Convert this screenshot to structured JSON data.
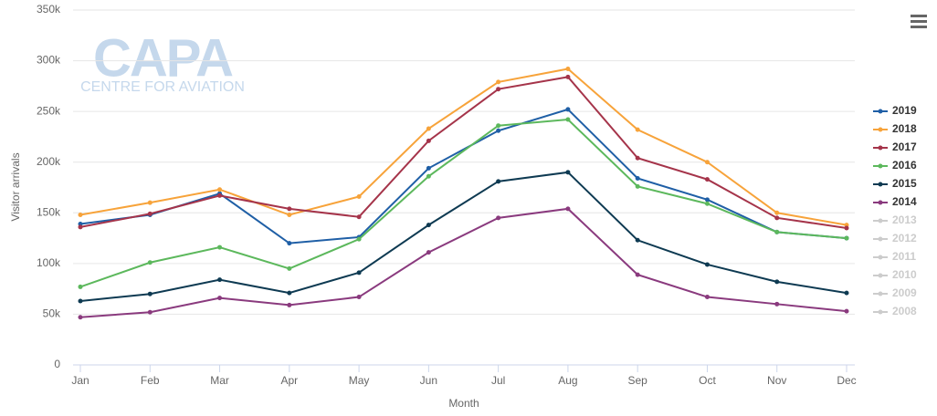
{
  "chart_data": {
    "type": "line",
    "watermark": {
      "title": "CAPA",
      "subtitle": "CENTRE FOR AVIATION"
    },
    "x_label": "Month",
    "y_label": "Visitor arrivals",
    "categories": [
      "Jan",
      "Feb",
      "Mar",
      "Apr",
      "May",
      "Jun",
      "Jul",
      "Aug",
      "Sep",
      "Oct",
      "Nov",
      "Dec"
    ],
    "ylim": [
      0,
      350000
    ],
    "yticks": [
      0,
      {
        "value": 50000,
        "label": "50k"
      },
      {
        "value": 100000,
        "label": "100k"
      },
      {
        "value": 150000,
        "label": "150k"
      },
      {
        "value": 200000,
        "label": "200k"
      },
      {
        "value": 250000,
        "label": "250k"
      },
      {
        "value": 300000,
        "label": "300k"
      },
      {
        "value": 350000,
        "label": "350k"
      }
    ],
    "grid": true,
    "legend": "right",
    "series": [
      {
        "name": "2019",
        "color": "#1f5fa6",
        "visible": true,
        "values": [
          139000,
          148000,
          169000,
          120000,
          126000,
          194000,
          231000,
          252000,
          184000,
          163000,
          131000,
          125000
        ]
      },
      {
        "name": "2018",
        "color": "#f7a33a",
        "visible": true,
        "values": [
          148000,
          160000,
          173000,
          148000,
          166000,
          233000,
          279000,
          292000,
          232000,
          200000,
          150000,
          138000
        ]
      },
      {
        "name": "2017",
        "color": "#a5344a",
        "visible": true,
        "values": [
          136000,
          149000,
          167000,
          154000,
          146000,
          221000,
          272000,
          284000,
          204000,
          183000,
          145000,
          135000
        ]
      },
      {
        "name": "2016",
        "color": "#5cb85c",
        "visible": true,
        "values": [
          77000,
          101000,
          116000,
          95000,
          124000,
          186000,
          236000,
          242000,
          176000,
          159000,
          131000,
          125000
        ]
      },
      {
        "name": "2015",
        "color": "#0e3a52",
        "visible": true,
        "values": [
          63000,
          70000,
          84000,
          71000,
          91000,
          138000,
          181000,
          190000,
          123000,
          99000,
          82000,
          71000
        ]
      },
      {
        "name": "2014",
        "color": "#8a3a7e",
        "visible": true,
        "values": [
          47000,
          52000,
          66000,
          59000,
          67000,
          111000,
          145000,
          154000,
          89000,
          67000,
          60000,
          53000
        ]
      },
      {
        "name": "2013",
        "color": "#cccccc",
        "visible": false,
        "values": [
          null,
          null,
          null,
          null,
          null,
          null,
          null,
          null,
          null,
          null,
          null,
          null
        ]
      },
      {
        "name": "2012",
        "color": "#cccccc",
        "visible": false,
        "values": [
          null,
          null,
          null,
          null,
          null,
          null,
          null,
          null,
          null,
          null,
          null,
          null
        ]
      },
      {
        "name": "2011",
        "color": "#cccccc",
        "visible": false,
        "values": [
          null,
          null,
          null,
          null,
          null,
          null,
          null,
          null,
          null,
          null,
          null,
          null
        ]
      },
      {
        "name": "2010",
        "color": "#cccccc",
        "visible": false,
        "values": [
          null,
          null,
          null,
          null,
          null,
          null,
          null,
          null,
          null,
          null,
          null,
          null
        ]
      },
      {
        "name": "2009",
        "color": "#cccccc",
        "visible": false,
        "values": [
          null,
          null,
          null,
          null,
          null,
          null,
          null,
          null,
          null,
          null,
          null,
          null
        ]
      },
      {
        "name": "2008",
        "color": "#cccccc",
        "visible": false,
        "values": [
          null,
          null,
          null,
          null,
          null,
          null,
          null,
          null,
          null,
          null,
          null,
          null
        ]
      }
    ]
  }
}
